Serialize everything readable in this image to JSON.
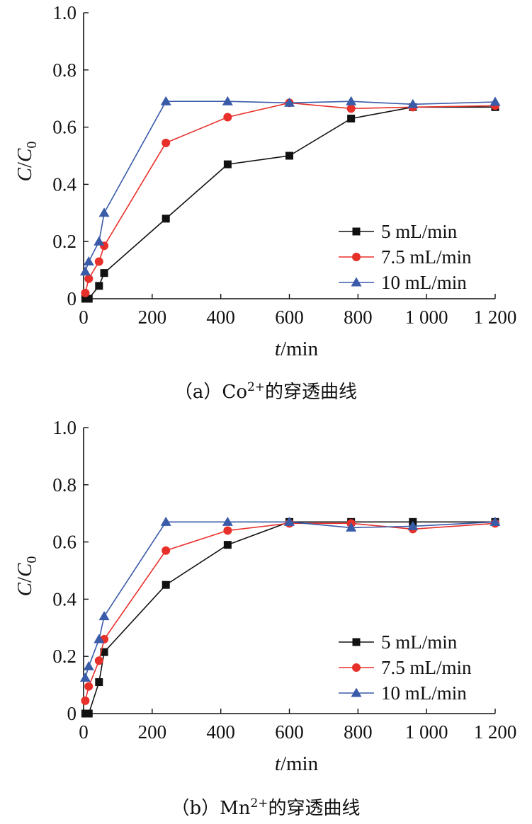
{
  "chart_data": [
    {
      "type": "line",
      "caption": {
        "prefix": "（a）Co",
        "sup": "2+",
        "suffix": "的穿透曲线"
      },
      "xlabel": {
        "italic": "t",
        "rest": "/min"
      },
      "ylabel": {
        "var1": "C",
        "slash": "/",
        "var2": "C",
        "sub": "0"
      },
      "xlim": [
        0,
        1200
      ],
      "ylim": [
        0,
        1.0
      ],
      "xticks": [
        0,
        200,
        400,
        600,
        800,
        1000,
        1200
      ],
      "xtick_labels": [
        "0",
        "200",
        "400",
        "600",
        "800",
        "1 000",
        "1 200"
      ],
      "yticks": [
        0,
        0.2,
        0.4,
        0.6,
        0.8,
        1.0
      ],
      "ytick_labels": [
        "0",
        "0.2",
        "0.4",
        "0.6",
        "0.8",
        "1.0"
      ],
      "legend_position": "center-right",
      "grid": false,
      "series": [
        {
          "name": "5 mL/min",
          "color": "#111111",
          "marker": "square",
          "x": [
            5,
            15,
            45,
            60,
            240,
            420,
            600,
            780,
            960,
            1200
          ],
          "y": [
            0.0,
            0.0,
            0.045,
            0.09,
            0.28,
            0.47,
            0.5,
            0.63,
            0.67,
            0.67
          ]
        },
        {
          "name": "7.5 mL/min",
          "color": "#e8302a",
          "marker": "circle",
          "x": [
            5,
            15,
            45,
            60,
            240,
            420,
            600,
            780,
            960,
            1200
          ],
          "y": [
            0.02,
            0.07,
            0.13,
            0.185,
            0.545,
            0.635,
            0.685,
            0.665,
            0.67,
            0.675
          ]
        },
        {
          "name": "10 mL/min",
          "color": "#3a5ba8",
          "marker": "triangle",
          "x": [
            5,
            15,
            45,
            60,
            240,
            420,
            600,
            780,
            960,
            1200
          ],
          "y": [
            0.095,
            0.13,
            0.2,
            0.3,
            0.69,
            0.69,
            0.685,
            0.69,
            0.68,
            0.688
          ]
        }
      ]
    },
    {
      "type": "line",
      "caption": {
        "prefix": "（b）Mn",
        "sup": "2+",
        "suffix": "的穿透曲线"
      },
      "xlabel": {
        "italic": "t",
        "rest": "/min"
      },
      "ylabel": {
        "var1": "C",
        "slash": "/",
        "var2": "C",
        "sub": "0"
      },
      "xlim": [
        0,
        1200
      ],
      "ylim": [
        0,
        1.0
      ],
      "xticks": [
        0,
        200,
        400,
        600,
        800,
        1000,
        1200
      ],
      "xtick_labels": [
        "0",
        "200",
        "400",
        "600",
        "800",
        "1 000",
        "1 200"
      ],
      "yticks": [
        0,
        0.2,
        0.4,
        0.6,
        0.8,
        1.0
      ],
      "ytick_labels": [
        "0",
        "0.2",
        "0.4",
        "0.6",
        "0.8",
        "1.0"
      ],
      "legend_position": "lower-right",
      "grid": false,
      "series": [
        {
          "name": "5 mL/min",
          "color": "#111111",
          "marker": "square",
          "x": [
            5,
            15,
            45,
            60,
            240,
            420,
            600,
            780,
            960,
            1200
          ],
          "y": [
            0.0,
            0.0,
            0.11,
            0.215,
            0.45,
            0.59,
            0.67,
            0.67,
            0.67,
            0.67
          ]
        },
        {
          "name": "7.5 mL/min",
          "color": "#e8302a",
          "marker": "circle",
          "x": [
            5,
            15,
            45,
            60,
            240,
            420,
            600,
            780,
            960,
            1200
          ],
          "y": [
            0.045,
            0.095,
            0.185,
            0.26,
            0.57,
            0.64,
            0.665,
            0.665,
            0.645,
            0.665
          ]
        },
        {
          "name": "10 mL/min",
          "color": "#3a5ba8",
          "marker": "triangle",
          "x": [
            5,
            15,
            45,
            60,
            240,
            420,
            600,
            780,
            960,
            1200
          ],
          "y": [
            0.125,
            0.165,
            0.26,
            0.34,
            0.67,
            0.67,
            0.67,
            0.65,
            0.655,
            0.67
          ]
        }
      ]
    }
  ]
}
